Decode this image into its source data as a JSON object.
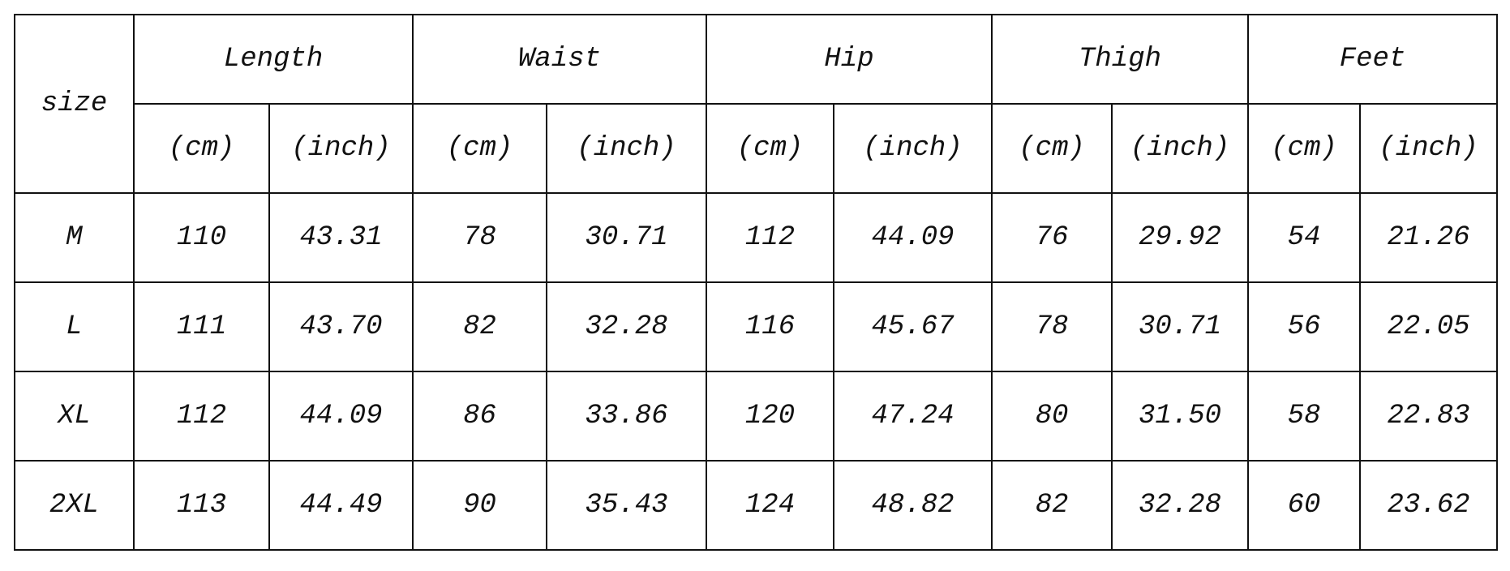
{
  "table": {
    "corner": "size",
    "groups": [
      "Length",
      "Waist",
      "Hip",
      "Thigh",
      "Feet"
    ],
    "units": [
      "(cm)",
      "(inch)",
      "(cm)",
      "(inch)",
      "(cm)",
      "(inch)",
      "(cm)",
      "(inch)",
      "(cm)",
      "(inch)"
    ],
    "rows": [
      [
        "M",
        "110",
        "43.31",
        "78",
        "30.71",
        "112",
        "44.09",
        "76",
        "29.92",
        "54",
        "21.26"
      ],
      [
        "L",
        "111",
        "43.70",
        "82",
        "32.28",
        "116",
        "45.67",
        "78",
        "30.71",
        "56",
        "22.05"
      ],
      [
        "XL",
        "112",
        "44.09",
        "86",
        "33.86",
        "120",
        "47.24",
        "80",
        "31.50",
        "58",
        "22.83"
      ],
      [
        "2XL",
        "113",
        "44.49",
        "90",
        "35.43",
        "124",
        "48.82",
        "82",
        "32.28",
        "60",
        "23.62"
      ]
    ]
  }
}
